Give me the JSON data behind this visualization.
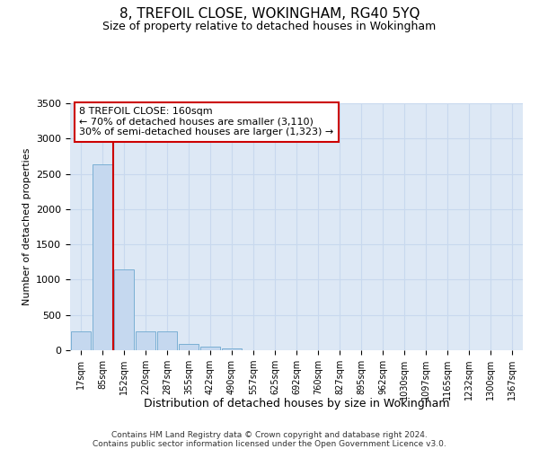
{
  "title": "8, TREFOIL CLOSE, WOKINGHAM, RG40 5YQ",
  "subtitle": "Size of property relative to detached houses in Wokingham",
  "xlabel": "Distribution of detached houses by size in Wokingham",
  "ylabel": "Number of detached properties",
  "categories": [
    "17sqm",
    "85sqm",
    "152sqm",
    "220sqm",
    "287sqm",
    "355sqm",
    "422sqm",
    "490sqm",
    "557sqm",
    "625sqm",
    "692sqm",
    "760sqm",
    "827sqm",
    "895sqm",
    "962sqm",
    "1030sqm",
    "1097sqm",
    "1165sqm",
    "1232sqm",
    "1300sqm",
    "1367sqm"
  ],
  "bar_values": [
    270,
    2640,
    1150,
    270,
    270,
    90,
    50,
    30,
    0,
    0,
    0,
    0,
    0,
    0,
    0,
    0,
    0,
    0,
    0,
    0,
    0
  ],
  "bar_color": "#c5d8ef",
  "bar_edge_color": "#7aafd4",
  "grid_color": "#c8d8ee",
  "background_color": "#dde8f5",
  "vline_x": 1.5,
  "vline_color": "#cc0000",
  "annotation_text": "8 TREFOIL CLOSE: 160sqm\n← 70% of detached houses are smaller (3,110)\n30% of semi-detached houses are larger (1,323) →",
  "annotation_box_color": "#ffffff",
  "annotation_box_edge": "#cc0000",
  "ylim": [
    0,
    3500
  ],
  "yticks": [
    0,
    500,
    1000,
    1500,
    2000,
    2500,
    3000,
    3500
  ],
  "footer_line1": "Contains HM Land Registry data © Crown copyright and database right 2024.",
  "footer_line2": "Contains public sector information licensed under the Open Government Licence v3.0.",
  "title_fontsize": 11,
  "subtitle_fontsize": 9
}
